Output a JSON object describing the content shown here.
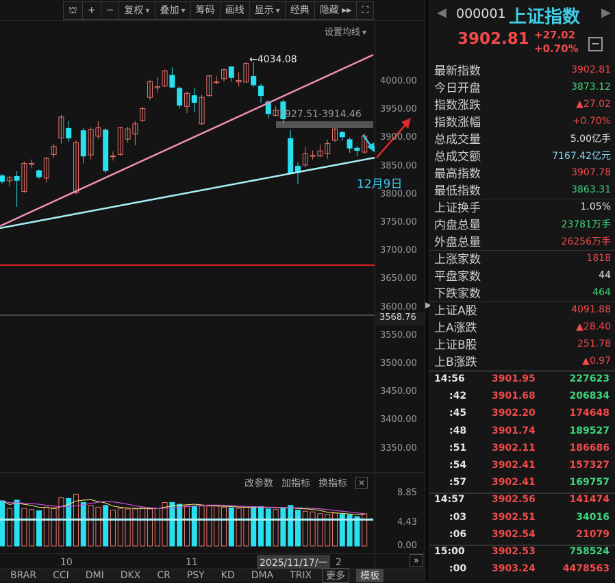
{
  "toolbar": {
    "items": [
      {
        "name": "lock-icon",
        "label": "⛫"
      },
      {
        "name": "zoom-in-button",
        "label": "+"
      },
      {
        "name": "zoom-out-button",
        "label": "−"
      },
      {
        "name": "rights-dropdown",
        "label": "复权",
        "caret": true
      },
      {
        "name": "overlay-dropdown",
        "label": "叠加",
        "caret": true
      },
      {
        "name": "chips-button",
        "label": "筹码"
      },
      {
        "name": "draw-line-button",
        "label": "画线"
      },
      {
        "name": "display-dropdown",
        "label": "显示",
        "caret": true
      },
      {
        "name": "classic-button",
        "label": "经典"
      },
      {
        "name": "hide-button",
        "label": "隐藏 ▸▸"
      },
      {
        "name": "fullscreen-icon",
        "label": "⛶"
      }
    ],
    "ma_settings": "设置均线"
  },
  "chart": {
    "y_ticks": [
      "4000.00",
      "3950.00",
      "3900.00",
      "3850.00",
      "3800.00",
      "3750.00",
      "3700.00",
      "3650.00",
      "3600.00",
      "3550.00",
      "3500.00",
      "3450.00",
      "3400.00",
      "3350.00"
    ],
    "current_line_label": "3568.76",
    "high_label": "←4034.08",
    "gap_label": "3927.51-3914.46",
    "date_annotation": "12月9日",
    "colors": {
      "up": "#e8736d",
      "down": "#28e0f0",
      "trend_upper": "#f08fb8",
      "trend_lower": "#a8f0f8",
      "horizontal": "#e02020"
    },
    "candles": [
      [
        3833,
        3823,
        3836,
        3819
      ],
      [
        3824,
        3830,
        3833,
        3815
      ],
      [
        3832,
        3825,
        3841,
        3778
      ],
      [
        3805,
        3855,
        3858,
        3803
      ],
      [
        3853,
        3855,
        3862,
        3846
      ],
      [
        3842,
        3831,
        3844,
        3828
      ],
      [
        3829,
        3864,
        3866,
        3821
      ],
      [
        3871,
        3885,
        3889,
        3865
      ],
      [
        3900,
        3937,
        3941,
        3890
      ],
      [
        3917,
        3900,
        3930,
        3893
      ],
      [
        3803,
        3892,
        3896,
        3800
      ],
      [
        3913,
        3868,
        3918,
        3855
      ],
      [
        3870,
        3915,
        3918,
        3862
      ],
      [
        3903,
        3918,
        3930,
        3898
      ],
      [
        3914,
        3842,
        3918,
        3838
      ],
      [
        3868,
        3868,
        3876,
        3860
      ],
      [
        3871,
        3918,
        3920,
        3868
      ],
      [
        3898,
        3916,
        3920,
        3892
      ],
      [
        3907,
        3925,
        3930,
        3887
      ],
      [
        3931,
        3952,
        3955,
        3929
      ],
      [
        3972,
        4000,
        4003,
        3967
      ],
      [
        3989,
        3991,
        4008,
        3980
      ],
      [
        3992,
        4019,
        4021,
        3990
      ],
      [
        4011,
        3990,
        4025,
        3988
      ],
      [
        3988,
        3958,
        3991,
        3952
      ],
      [
        3956,
        3979,
        3982,
        3944
      ],
      [
        3975,
        3963,
        3989,
        3945
      ],
      [
        3925,
        3972,
        3977,
        3923
      ],
      [
        3975,
        4010,
        4012,
        3973
      ],
      [
        3998,
        4000,
        4010,
        3995
      ],
      [
        4005,
        4021,
        4023,
        4000
      ],
      [
        4026,
        4007,
        4027,
        4000
      ],
      [
        3999,
        4002,
        4017,
        3991
      ],
      [
        3999,
        4032,
        4034,
        3998
      ],
      [
        4009,
        3994,
        4034.08,
        3990
      ],
      [
        3992,
        3975,
        3996,
        3962
      ],
      [
        3964,
        3943,
        3967,
        3935
      ],
      [
        3940,
        3949,
        3956,
        3938
      ],
      [
        3964,
        3934,
        3968,
        3926
      ],
      [
        3899,
        3838,
        3914,
        3836
      ],
      [
        3850,
        3839,
        3857,
        3819
      ],
      [
        3852,
        3872,
        3884,
        3848
      ],
      [
        3869,
        3869,
        3878,
        3862
      ],
      [
        3868,
        3877,
        3888,
        3866
      ],
      [
        3872,
        3890,
        3897,
        3863
      ],
      [
        3896,
        3916,
        3918,
        3893
      ],
      [
        3910,
        3902,
        3912,
        3895
      ],
      [
        3897,
        3882,
        3901,
        3874
      ],
      [
        3882,
        3878,
        3886,
        3868
      ],
      [
        3875,
        3903,
        3908,
        3872
      ]
    ],
    "volume_ticks": [
      "8.85",
      "4.43",
      "0.00"
    ],
    "volumes": [
      7.7,
      6.4,
      7.8,
      6.4,
      6.2,
      6.0,
      6.6,
      6.5,
      8.2,
      8.1,
      8.8,
      7.4,
      6.9,
      6.6,
      6.9,
      6.1,
      6.4,
      6.3,
      6.3,
      6.6,
      6.3,
      6.4,
      7.4,
      7.4,
      7.1,
      6.8,
      6.8,
      6.8,
      6.8,
      6.8,
      6.6,
      6.5,
      6.4,
      6.6,
      6.7,
      6.7,
      6.3,
      6.2,
      6.4,
      6.9,
      6.1,
      5.9,
      5.8,
      5.5,
      5.4,
      5.6,
      5.4,
      5.3,
      5.0,
      5.5
    ],
    "volume_header": [
      "改参数",
      "加指标",
      "换指标"
    ],
    "x_labels": [
      "10",
      "11"
    ],
    "cursor_date": "2025/11/17/一",
    "x_label_partial": "2"
  },
  "tabs": [
    "BRAR",
    "CCI",
    "DMI",
    "DKX",
    "CR",
    "PSY",
    "KD",
    "DMA",
    "TRIX"
  ],
  "tabs_more": "更多",
  "tabs_template": "模板",
  "quote": {
    "code": "000001",
    "name": "上证指数",
    "price": "3902.81",
    "change": "+27.02",
    "change_pct": "+0.70%",
    "rows": [
      {
        "label": "最新指数",
        "value": "3902.81",
        "c": "up"
      },
      {
        "label": "今日开盘",
        "value": "3873.12",
        "c": "dn"
      },
      {
        "label": "指数涨跌",
        "value": "▲27.02",
        "c": "up"
      },
      {
        "label": "指数涨幅",
        "value": "+0.70%",
        "c": "up"
      },
      {
        "label": "总成交量",
        "value": "5.00亿手",
        "c": "wt"
      },
      {
        "label": "总成交额",
        "value": "7167.42亿元",
        "c": "cy"
      },
      {
        "label": "最高指数",
        "value": "3907.78",
        "c": "up"
      },
      {
        "label": "最低指数",
        "value": "3863.31",
        "c": "dn"
      },
      {
        "label": "上证换手",
        "value": "1.05%",
        "c": "wt"
      },
      {
        "label": "内盘总量",
        "value": "23781万手",
        "c": "dn"
      },
      {
        "label": "外盘总量",
        "value": "26256万手",
        "c": "up"
      },
      {
        "label": "上涨家数",
        "value": "1818",
        "c": "up"
      },
      {
        "label": "平盘家数",
        "value": "44",
        "c": "wt"
      },
      {
        "label": "下跌家数",
        "value": "464",
        "c": "dn"
      },
      {
        "label": "上证A股",
        "value": "4091.88",
        "c": "up"
      },
      {
        "label": "上A涨跌",
        "value": "▲28.40",
        "c": "up"
      },
      {
        "label": "上证B股",
        "value": "251.78",
        "c": "up"
      },
      {
        "label": "上B涨跌",
        "value": "▲0.97",
        "c": "up"
      }
    ],
    "ticks": [
      {
        "time": "14:56",
        "price": "3901.95",
        "vol": "227623",
        "c": "dn"
      },
      {
        "time": ":42",
        "price": "3901.68",
        "vol": "206834",
        "c": "dn"
      },
      {
        "time": ":45",
        "price": "3902.20",
        "vol": "174648",
        "c": "up"
      },
      {
        "time": ":48",
        "price": "3901.74",
        "vol": "189527",
        "c": "dn"
      },
      {
        "time": ":51",
        "price": "3902.11",
        "vol": "186686",
        "c": "up"
      },
      {
        "time": ":54",
        "price": "3902.41",
        "vol": "157327",
        "c": "up"
      },
      {
        "time": ":57",
        "price": "3902.41",
        "vol": "169757",
        "c": "dn"
      },
      {
        "time": "14:57",
        "price": "3902.56",
        "vol": "141474",
        "c": "up"
      },
      {
        "time": ":03",
        "price": "3902.51",
        "vol": "34016",
        "c": "dn"
      },
      {
        "time": ":06",
        "price": "3902.54",
        "vol": "21079",
        "c": "up"
      },
      {
        "time": "15:00",
        "price": "3902.53",
        "vol": "758524",
        "c": "dn"
      },
      {
        "time": ":00",
        "price": "3903.24",
        "vol": "4478563",
        "c": "up"
      }
    ]
  }
}
